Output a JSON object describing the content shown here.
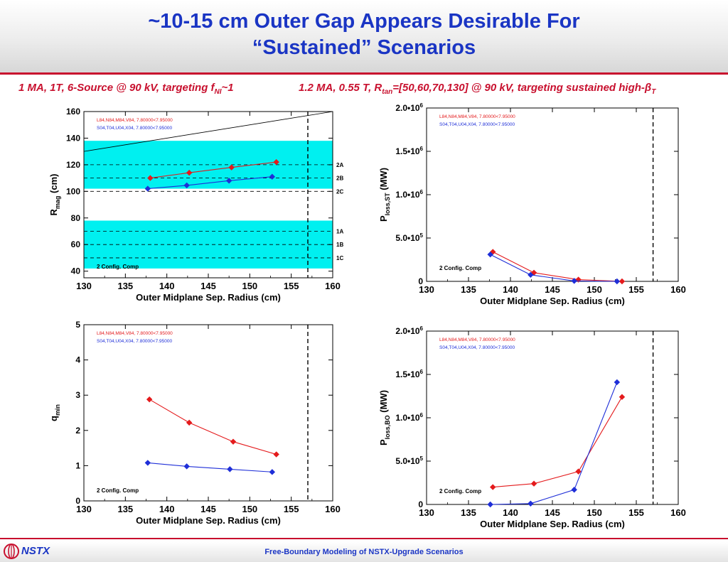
{
  "title": {
    "line1": "~10-15 cm Outer Gap Appears Desirable For",
    "line2": "“Sustained” Scenarios"
  },
  "subtitle_left": {
    "pre": "1 MA, 1T, 6-Source @ 90 kV, targeting f",
    "sub": "NI",
    "post": "~1"
  },
  "subtitle_right": {
    "pre": "1.2 MA, 0.55 T, R",
    "sub": "tan",
    "post": "=[50,60,70,130] @ 90 kV, targeting sustained high-β",
    "sub2": "T"
  },
  "footer": {
    "brand": "NSTX",
    "title": "Free-Boundary Modeling of NSTX-Upgrade Scenarios"
  },
  "colors": {
    "title": "#1a35c4",
    "accent": "#c8102e",
    "series_red": "#e41a1c",
    "series_blue": "#1f2fd8",
    "band": "#00f0f0"
  },
  "chart_data": [
    {
      "type": "line",
      "xlabel": "Outer Midplane Sep. Radius (cm)",
      "ylabel": "R",
      "ylabel_sub": "mag",
      "ylabel_post": " (cm)",
      "xlim": [
        130,
        160
      ],
      "ylim": [
        35,
        160
      ],
      "xticks": [
        130,
        135,
        140,
        145,
        150,
        155,
        160
      ],
      "yticks": [
        40,
        60,
        80,
        100,
        120,
        140,
        160
      ],
      "ytick_labels": [
        "40",
        "60",
        "80",
        "100",
        "120",
        "140",
        "160"
      ],
      "series": [
        {
          "name": "L84,N84,M84,V84, 7.80000<7.95000",
          "color": "red",
          "x": [
            138,
            142.7,
            147.8,
            153.2
          ],
          "y": [
            110,
            114,
            118,
            122
          ]
        },
        {
          "name": "S04,T04,U04,X04, 7.80000<7.95000",
          "color": "blue",
          "x": [
            137.7,
            142.4,
            147.5,
            152.7
          ],
          "y": [
            102,
            104.5,
            108,
            111
          ]
        }
      ],
      "reference_line": {
        "x": [
          130,
          160
        ],
        "y": [
          130,
          160
        ]
      },
      "bands": [
        {
          "y": [
            102,
            138
          ]
        },
        {
          "y": [
            42,
            78
          ]
        }
      ],
      "hlines": [
        {
          "y": 120,
          "label": "2A"
        },
        {
          "y": 110,
          "label": "2B"
        },
        {
          "y": 100,
          "label": "2C"
        },
        {
          "y": 70,
          "label": "1A"
        },
        {
          "y": 60,
          "label": "1B"
        },
        {
          "y": 50,
          "label": "1C"
        }
      ],
      "vline": 157,
      "annotation": "2 Config. Comp"
    },
    {
      "type": "line",
      "xlabel": "Outer Midplane Sep. Radius (cm)",
      "ylabel": "P",
      "ylabel_sub": "loss,ST",
      "ylabel_post": " (MW)",
      "xlim": [
        130,
        160
      ],
      "ylim": [
        0,
        2000000
      ],
      "xticks": [
        130,
        135,
        140,
        145,
        150,
        155,
        160
      ],
      "yticks": [
        0,
        500000,
        1000000,
        1500000,
        2000000
      ],
      "ytick_labels": [
        "0",
        "5.0•10^5",
        "1.0•10^6",
        "1.5•10^6",
        "2.0•10^6"
      ],
      "series": [
        {
          "name": "L84,N84,M84,V84, 7.80000<7.95000",
          "color": "red",
          "x": [
            137.9,
            142.8,
            148.1,
            153.3
          ],
          "y": [
            340000,
            100000,
            20000,
            0
          ]
        },
        {
          "name": "S04,T04,U04,X04, 7.80000<7.95000",
          "color": "blue",
          "x": [
            137.6,
            142.4,
            147.6,
            152.7
          ],
          "y": [
            310000,
            75000,
            5000,
            0
          ]
        }
      ],
      "vline": 157,
      "annotation": "2 Config. Comp"
    },
    {
      "type": "line",
      "xlabel": "Outer Midplane Sep. Radius (cm)",
      "ylabel": "q",
      "ylabel_sub": "min",
      "ylabel_post": "",
      "xlim": [
        130,
        160
      ],
      "ylim": [
        0,
        5
      ],
      "xticks": [
        130,
        135,
        140,
        145,
        150,
        155,
        160
      ],
      "yticks": [
        0,
        1,
        2,
        3,
        4,
        5
      ],
      "ytick_labels": [
        "0",
        "1",
        "2",
        "3",
        "4",
        "5"
      ],
      "series": [
        {
          "name": "L84,N84,M84,V84, 7.80000<7.95000",
          "color": "red",
          "x": [
            137.9,
            142.7,
            148,
            153.2
          ],
          "y": [
            2.88,
            2.22,
            1.68,
            1.32
          ]
        },
        {
          "name": "S04,T04,U04,X04, 7.80000<7.95000",
          "color": "blue",
          "x": [
            137.7,
            142.4,
            147.6,
            152.7
          ],
          "y": [
            1.08,
            0.98,
            0.9,
            0.82
          ]
        }
      ],
      "vline": 157,
      "annotation": "2 Config. Comp"
    },
    {
      "type": "line",
      "xlabel": "Outer Midplane Sep. Radius (cm)",
      "ylabel": "P",
      "ylabel_sub": "loss,BO",
      "ylabel_post": " (MW)",
      "xlim": [
        130,
        160
      ],
      "ylim": [
        0,
        2000000
      ],
      "xticks": [
        130,
        135,
        140,
        145,
        150,
        155,
        160
      ],
      "yticks": [
        0,
        500000,
        1000000,
        1500000,
        2000000
      ],
      "ytick_labels": [
        "0",
        "5.0•10^5",
        "1.0•10^6",
        "1.5•10^6",
        "2.0•10^6"
      ],
      "series": [
        {
          "name": "L84,N84,M84,V84, 7.80000<7.95000",
          "color": "red",
          "x": [
            137.9,
            142.8,
            148.1,
            153.3
          ],
          "y": [
            200000,
            240000,
            380000,
            1240000
          ]
        },
        {
          "name": "S04,T04,U04,X04, 7.80000<7.95000",
          "color": "blue",
          "x": [
            137.6,
            142.4,
            147.6,
            152.7
          ],
          "y": [
            0,
            10000,
            170000,
            1410000
          ]
        }
      ],
      "vline": 157,
      "annotation": "2 Config. Comp"
    }
  ]
}
